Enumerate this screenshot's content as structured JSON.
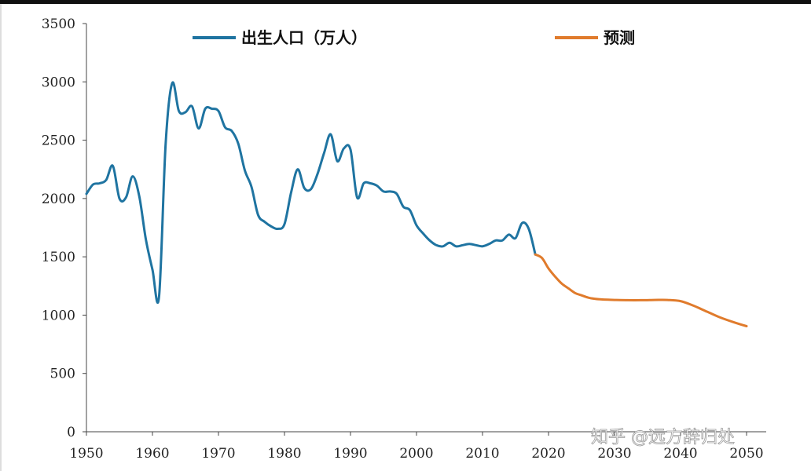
{
  "chart_data": {
    "type": "line",
    "title": "",
    "xlabel": "",
    "ylabel": "",
    "xlim": [
      1950,
      2050
    ],
    "ylim": [
      0,
      3500
    ],
    "x_ticks": [
      1950,
      1960,
      1970,
      1980,
      1990,
      2000,
      2010,
      2020,
      2030,
      2040,
      2050
    ],
    "y_ticks": [
      0,
      500,
      1000,
      1500,
      2000,
      2500,
      3000,
      3500
    ],
    "grid": false,
    "legend_position": "top",
    "series": [
      {
        "name": "出生人口（万人）",
        "color": "#1f74a1",
        "x": [
          1950,
          1951,
          1952,
          1953,
          1954,
          1955,
          1956,
          1957,
          1958,
          1959,
          1960,
          1961,
          1962,
          1963,
          1964,
          1965,
          1966,
          1967,
          1968,
          1969,
          1970,
          1971,
          1972,
          1973,
          1974,
          1975,
          1976,
          1977,
          1978,
          1979,
          1980,
          1981,
          1982,
          1983,
          1984,
          1985,
          1986,
          1987,
          1988,
          1989,
          1990,
          1991,
          1992,
          1993,
          1994,
          1995,
          1996,
          1997,
          1998,
          1999,
          2000,
          2001,
          2002,
          2003,
          2004,
          2005,
          2006,
          2007,
          2008,
          2009,
          2010,
          2011,
          2012,
          2013,
          2014,
          2015,
          2016,
          2017,
          2018
        ],
        "y": [
          2040,
          2120,
          2130,
          2160,
          2280,
          2000,
          2010,
          2190,
          2020,
          1650,
          1390,
          1160,
          2470,
          2990,
          2750,
          2740,
          2790,
          2600,
          2770,
          2770,
          2750,
          2610,
          2580,
          2470,
          2240,
          2100,
          1860,
          1800,
          1760,
          1740,
          1780,
          2050,
          2250,
          2090,
          2080,
          2210,
          2390,
          2550,
          2320,
          2430,
          2420,
          2010,
          2130,
          2130,
          2110,
          2060,
          2060,
          2040,
          1930,
          1900,
          1770,
          1700,
          1640,
          1600,
          1590,
          1620,
          1590,
          1600,
          1610,
          1600,
          1590,
          1610,
          1640,
          1640,
          1690,
          1660,
          1790,
          1740,
          1520
        ]
      },
      {
        "name": "预测",
        "color": "#e07b2c",
        "x": [
          2018,
          2019,
          2020,
          2021,
          2022,
          2023,
          2024,
          2025,
          2026,
          2027,
          2028,
          2029,
          2030,
          2032,
          2034,
          2036,
          2038,
          2040,
          2042,
          2044,
          2046,
          2048,
          2050
        ],
        "y": [
          1520,
          1490,
          1400,
          1330,
          1270,
          1230,
          1190,
          1170,
          1150,
          1140,
          1135,
          1132,
          1130,
          1128,
          1128,
          1130,
          1130,
          1120,
          1080,
          1030,
          980,
          940,
          905
        ]
      }
    ]
  },
  "watermark": "知乎 @远方辞归处"
}
